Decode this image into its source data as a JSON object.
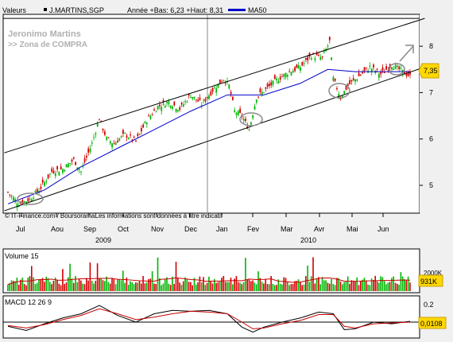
{
  "header": {
    "valeurs_label": "Valeurs",
    "symbol": "J.MARTINS,SGP",
    "period_info": "Année +Bas: 6,23 +Haut: 8,31",
    "ma_label": "MA50"
  },
  "annotation": {
    "line1": "Jeronimo Martins",
    "line2": ">> Zona de COMPRA"
  },
  "footer_credit": "© IT-Finance.com / BoursoramaLes informations sont données à titre indicatif",
  "colors": {
    "up": "#00b400",
    "down": "#d20000",
    "ma": "#0000c8",
    "signal": "#c80000",
    "price_badge": "#ffd700"
  },
  "chart_data": [
    {
      "type": "candlestick",
      "x_ticks": [
        "Jul",
        "Aou",
        "Sep",
        "Oct",
        "Nov",
        "Dec",
        "Jan",
        "Fev",
        "Mar",
        "Avr",
        "Mai",
        "Jun"
      ],
      "year_labels": [
        "2009",
        "2010"
      ],
      "y_ticks": [
        5,
        6,
        7,
        8
      ],
      "ylim": [
        4.4,
        8.6
      ],
      "last_price": "7,35",
      "close_points": [
        [
          0,
          4.85
        ],
        [
          6,
          4.6
        ],
        [
          12,
          4.7
        ],
        [
          18,
          4.95
        ],
        [
          24,
          5.3
        ],
        [
          30,
          5.35
        ],
        [
          36,
          5.55
        ],
        [
          40,
          5.3
        ],
        [
          46,
          5.9
        ],
        [
          50,
          6.45
        ],
        [
          54,
          6.0
        ],
        [
          58,
          5.9
        ],
        [
          64,
          6.1
        ],
        [
          70,
          5.95
        ],
        [
          76,
          6.4
        ],
        [
          82,
          6.7
        ],
        [
          88,
          6.8
        ],
        [
          94,
          6.65
        ],
        [
          100,
          6.95
        ],
        [
          106,
          6.75
        ],
        [
          112,
          7.05
        ],
        [
          118,
          7.3
        ],
        [
          121,
          7.15
        ],
        [
          124,
          6.6
        ],
        [
          128,
          6.5
        ],
        [
          132,
          6.2
        ],
        [
          136,
          6.9
        ],
        [
          142,
          7.1
        ],
        [
          148,
          7.3
        ],
        [
          154,
          7.45
        ],
        [
          160,
          7.55
        ],
        [
          166,
          7.8
        ],
        [
          172,
          7.75
        ],
        [
          176,
          8.1
        ],
        [
          178,
          7.3
        ],
        [
          182,
          6.9
        ],
        [
          186,
          7.15
        ],
        [
          192,
          7.35
        ],
        [
          198,
          7.55
        ],
        [
          204,
          7.4
        ],
        [
          210,
          7.6
        ],
        [
          216,
          7.45
        ],
        [
          220,
          7.35
        ]
      ],
      "ma50_points": [
        [
          0,
          4.6
        ],
        [
          20,
          4.9
        ],
        [
          40,
          5.4
        ],
        [
          60,
          5.8
        ],
        [
          80,
          6.2
        ],
        [
          100,
          6.6
        ],
        [
          120,
          6.95
        ],
        [
          140,
          6.95
        ],
        [
          160,
          7.2
        ],
        [
          175,
          7.5
        ],
        [
          190,
          7.45
        ],
        [
          205,
          7.45
        ],
        [
          220,
          7.45
        ]
      ],
      "channel_upper": [
        [
          -2,
          5.7
        ],
        [
          228,
          8.6
        ]
      ],
      "channel_lower": [
        [
          -2,
          4.45
        ],
        [
          228,
          7.55
        ]
      ],
      "gridline": 8.6
    },
    {
      "type": "bar",
      "title": "Volume 15",
      "last_value": "931K",
      "extra_label": "2000K"
    },
    {
      "type": "line",
      "title": "MACD 12 26 9",
      "y_ticks": [
        0.2
      ],
      "last_value": "0,0108",
      "macd_points": [
        [
          0,
          -0.05
        ],
        [
          10,
          -0.1
        ],
        [
          20,
          -0.02
        ],
        [
          30,
          0.05
        ],
        [
          40,
          0.1
        ],
        [
          50,
          0.2
        ],
        [
          60,
          0.08
        ],
        [
          70,
          0.0
        ],
        [
          80,
          0.1
        ],
        [
          90,
          0.14
        ],
        [
          100,
          0.13
        ],
        [
          110,
          0.14
        ],
        [
          120,
          0.1
        ],
        [
          128,
          -0.06
        ],
        [
          134,
          -0.12
        ],
        [
          140,
          -0.06
        ],
        [
          150,
          0.0
        ],
        [
          160,
          0.05
        ],
        [
          170,
          0.12
        ],
        [
          178,
          0.1
        ],
        [
          184,
          -0.09
        ],
        [
          190,
          -0.08
        ],
        [
          200,
          0.0
        ],
        [
          210,
          -0.02
        ],
        [
          220,
          0.01
        ]
      ],
      "signal_points": [
        [
          0,
          -0.04
        ],
        [
          10,
          -0.07
        ],
        [
          20,
          -0.03
        ],
        [
          30,
          0.03
        ],
        [
          40,
          0.08
        ],
        [
          50,
          0.16
        ],
        [
          60,
          0.1
        ],
        [
          70,
          0.03
        ],
        [
          80,
          0.06
        ],
        [
          90,
          0.1
        ],
        [
          100,
          0.13
        ],
        [
          110,
          0.12
        ],
        [
          120,
          0.1
        ],
        [
          128,
          0.0
        ],
        [
          134,
          -0.08
        ],
        [
          140,
          -0.07
        ],
        [
          150,
          -0.02
        ],
        [
          160,
          0.02
        ],
        [
          170,
          0.09
        ],
        [
          178,
          0.09
        ],
        [
          184,
          -0.05
        ],
        [
          190,
          -0.07
        ],
        [
          200,
          -0.02
        ],
        [
          210,
          -0.01
        ],
        [
          220,
          0.0
        ]
      ]
    }
  ]
}
